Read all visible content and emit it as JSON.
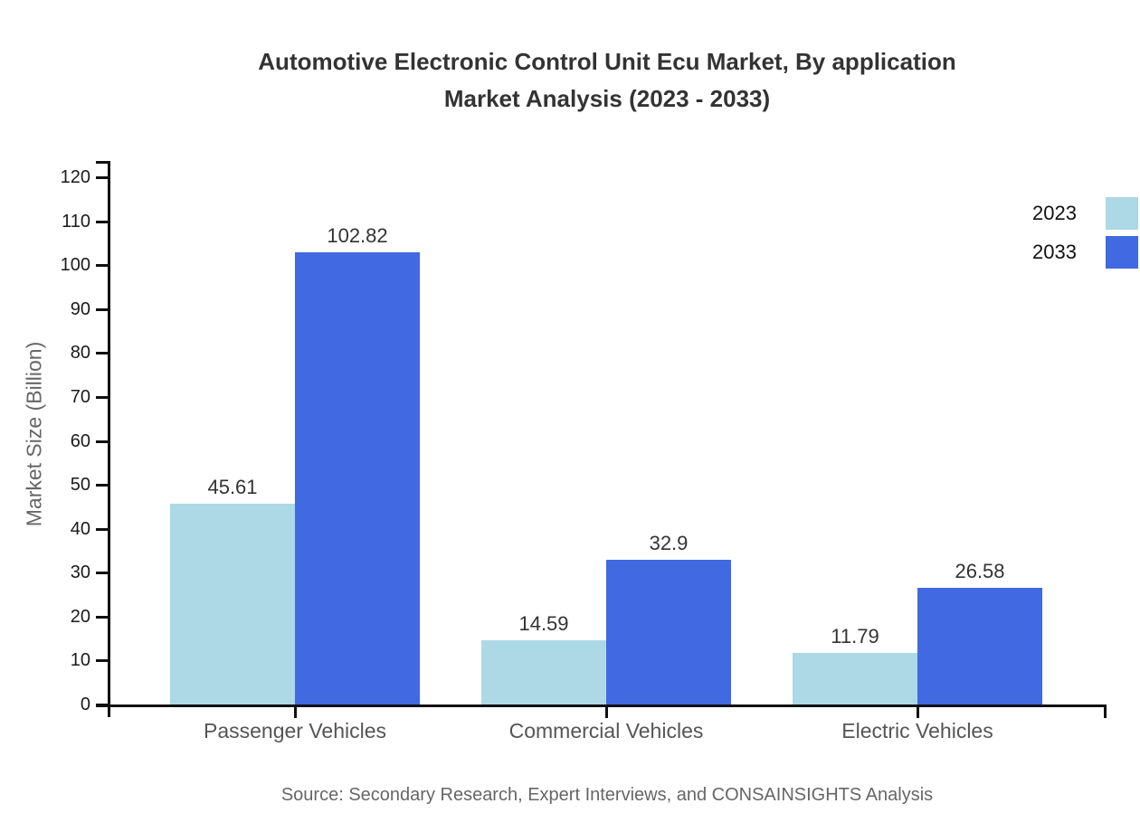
{
  "title": {
    "line1": "Automotive Electronic Control Unit Ecu Market, By application",
    "line2": "Market Analysis (2023 - 2033)"
  },
  "source": "Source: Secondary Research, Expert Interviews, and CONSAINSIGHTS Analysis",
  "chart_data": {
    "type": "bar",
    "title": "Automotive Electronic Control Unit Ecu Market, By application Market Analysis (2023 - 2033)",
    "categories": [
      "Passenger Vehicles",
      "Commercial Vehicles",
      "Electric Vehicles"
    ],
    "series": [
      {
        "name": "2023",
        "color": "#ADD8E6",
        "values": [
          45.61,
          14.59,
          11.79
        ]
      },
      {
        "name": "2033",
        "color": "#4169E1",
        "values": [
          102.82,
          32.9,
          26.58
        ]
      }
    ],
    "xlabel": "",
    "ylabel": "Market Size (Billion)",
    "ylim": [
      0,
      120
    ],
    "ytick_step": 10,
    "yticks": [
      0,
      10,
      20,
      30,
      40,
      50,
      60,
      70,
      80,
      90,
      100,
      110,
      120
    ],
    "grid": false,
    "legend_position": "top-right-outside",
    "value_labels_shown": true,
    "axis_color": "#111111",
    "background_color": "#ffffff"
  }
}
